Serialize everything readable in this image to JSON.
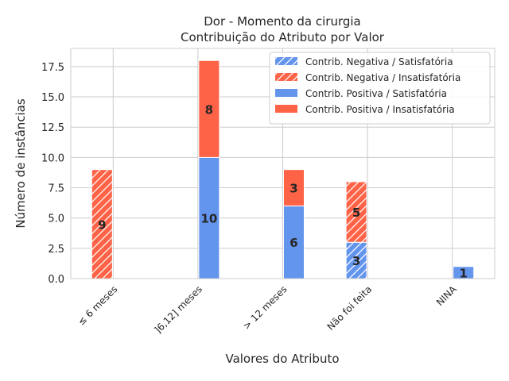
{
  "chart_data": {
    "type": "bar",
    "stacked": true,
    "title": "Dor - Momento da cirurgia",
    "subtitle": "Contribuição do Atributo por Valor",
    "xlabel": "Valores do Atributo",
    "ylabel": "Número de instâncias",
    "ylim": [
      0,
      19
    ],
    "yticks": [
      "0.0",
      "2.5",
      "5.0",
      "7.5",
      "10.0",
      "12.5",
      "15.0",
      "17.5"
    ],
    "grid": true,
    "legend_position": "top-right",
    "categories": [
      "≤ 6 meses",
      "]6,12] meses",
      "> 12 meses",
      "Não foi feita",
      "NINA"
    ],
    "series": [
      {
        "name": "Contrib. Negativa / Satisfatória",
        "group": "negativa",
        "color": "#6495ED",
        "hatch": true,
        "values": [
          0,
          0,
          0,
          3,
          0
        ]
      },
      {
        "name": "Contrib. Negativa / Insatisfatória",
        "group": "negativa",
        "color": "#FF6347",
        "hatch": true,
        "values": [
          9,
          0,
          0,
          5,
          0
        ]
      },
      {
        "name": "Contrib. Positiva / Satisfatória",
        "group": "positiva",
        "color": "#6495ED",
        "hatch": false,
        "values": [
          0,
          10,
          6,
          0,
          1
        ]
      },
      {
        "name": "Contrib. Positiva / Insatisfatória",
        "group": "positiva",
        "color": "#FF6347",
        "hatch": false,
        "values": [
          0,
          8,
          3,
          0,
          0
        ]
      }
    ]
  }
}
